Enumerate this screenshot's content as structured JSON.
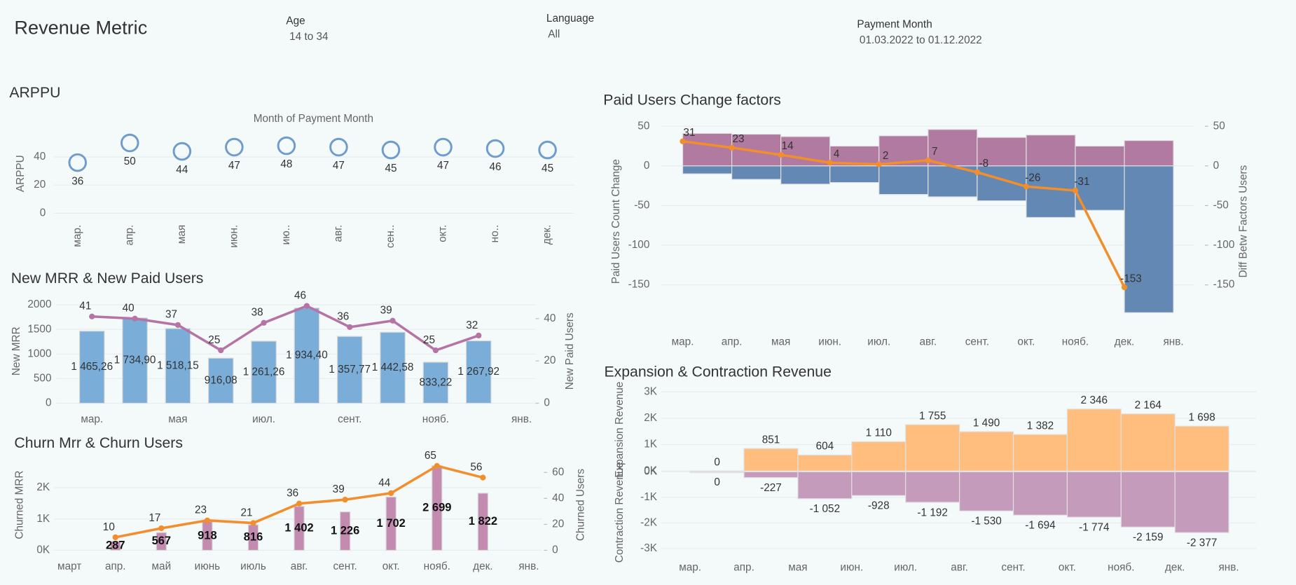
{
  "header": {
    "title": "Revenue Metric",
    "filters": [
      {
        "label": "Age",
        "value": "14 to 34"
      },
      {
        "label": "Language",
        "value": "All"
      },
      {
        "label": "Payment Month",
        "value": "01.03.2022 to 01.12.2022"
      }
    ]
  },
  "chart_data": [
    {
      "type": "dot",
      "title": "ARPPU",
      "x_label": "Month of Payment Month",
      "y_label": "ARPPU",
      "categories": [
        "мар.",
        "апр.",
        "мая",
        "июн.",
        "ию..",
        "авг.",
        "сен..",
        "окт.",
        "но..",
        "дек."
      ],
      "values": [
        36,
        50,
        44,
        47,
        48,
        47,
        45,
        47,
        46,
        45
      ],
      "color": "#6f9ccc",
      "ylim": [
        0,
        55
      ],
      "yticks": [
        0,
        20,
        40
      ],
      "grid": true
    },
    {
      "type": "bar-line",
      "title": "New MRR & New Paid Users",
      "categories": [
        "мар.",
        null,
        "мая",
        null,
        "июл.",
        null,
        "сент.",
        null,
        "нояб.",
        null,
        "янв."
      ],
      "series": [
        {
          "name": "New MRR",
          "color": "#7aadd8",
          "values": [
            1465.26,
            1734.9,
            1518.15,
            916.08,
            1261.26,
            1934.4,
            1357.77,
            1442.58,
            833.22,
            1267.92,
            null
          ],
          "value_labels": [
            "1 465,26",
            "1 734,90",
            "1 518,15",
            "916,08",
            "1 261,26",
            "1 934,40",
            "1 357,77",
            "1 442,58",
            "833,22",
            "1 267,92",
            null
          ]
        },
        {
          "name": "New Paid Users",
          "color": "#b574a5",
          "axis": "y2",
          "values": [
            41,
            40,
            37,
            25,
            38,
            46,
            36,
            39,
            25,
            32,
            null
          ]
        }
      ],
      "ylim": [
        0,
        2150
      ],
      "yticks": [
        0,
        500,
        1000,
        1500,
        2000
      ],
      "y2lim": [
        0,
        50
      ],
      "y2ticks": [
        0,
        20,
        40
      ],
      "grid": true
    },
    {
      "type": "bar-line",
      "title": "Churn Mrr & Churn Users",
      "categories": [
        "март",
        "апр.",
        "май",
        "июнь",
        "июль",
        "авг.",
        "сент.",
        "окт.",
        "нояб.",
        "дек.",
        "янв."
      ],
      "series": [
        {
          "name": "Churned  MRR",
          "color": "#c48bb0",
          "values": [
            null,
            287,
            567,
            918,
            816,
            1402,
            1226,
            1702,
            2699,
            1822,
            null
          ],
          "value_labels": [
            null,
            "287",
            "567",
            "918",
            "816",
            "1 402",
            "1 226",
            "1 702",
            "2 699",
            "1 822",
            null
          ]
        },
        {
          "name": "Churned Users",
          "color": "#f28e2b",
          "axis": "y2",
          "values": [
            null,
            10,
            17,
            23,
            21,
            36,
            39,
            44,
            65,
            56,
            null
          ]
        }
      ],
      "ylim": [
        0,
        2900
      ],
      "yticks": [
        {
          "value": 0,
          "label": "0K"
        },
        {
          "value": 1000,
          "label": "1K"
        },
        {
          "value": 2000,
          "label": "2K"
        }
      ],
      "y2lim": [
        0,
        70
      ],
      "y2ticks": [
        0,
        20,
        40,
        60
      ],
      "grid": true
    },
    {
      "type": "diverging-bar-line",
      "title": "Paid Users Change factors",
      "y_label": "Paid Users Count Change",
      "y2_label": "Diff Betw Factors Users",
      "categories": [
        "мар.",
        "апр.",
        "мая",
        "июн.",
        "июл.",
        "авг.",
        "сент.",
        "окт.",
        "нояб.",
        "дек.",
        "янв."
      ],
      "series": [
        {
          "color": "#b07aa1",
          "values": [
            41,
            40,
            37,
            25,
            38,
            46,
            36,
            39,
            25,
            32,
            null
          ]
        },
        {
          "color": "#6388b4",
          "values": [
            -10,
            -17,
            -23,
            -21,
            -36,
            -39,
            -44,
            -65,
            -56,
            -185,
            null
          ]
        },
        {
          "color": "#f28e2b",
          "axis": "y2",
          "values": [
            31,
            23,
            14,
            4,
            2,
            7,
            -8,
            -26,
            -31,
            -153,
            null
          ]
        }
      ],
      "ylim": [
        -195,
        55
      ],
      "yticks": [
        -150,
        -100,
        -50,
        0,
        50
      ],
      "y2lim": [
        -195,
        55
      ],
      "y2ticks": [
        -150,
        -100,
        -50,
        0,
        50
      ],
      "grid": true
    },
    {
      "type": "diverging-bar",
      "title": "Expansion & Contraction Revenue",
      "categories": [
        "мар.",
        "апр.",
        "мая",
        "июн.",
        "июл.",
        "авг.",
        "сент.",
        "окт.",
        "нояб.",
        "дек.",
        "янв."
      ],
      "series": [
        {
          "name": "Expansion Revenue",
          "color": "#ffbe7d",
          "values": [
            0,
            851,
            604,
            1110,
            1755,
            1490,
            1382,
            2346,
            2164,
            1698,
            null
          ],
          "value_labels": [
            "0",
            "851",
            "604",
            "1 110",
            "1 755",
            "1 490",
            "1 382",
            "2 346",
            "2 164",
            "1 698",
            null
          ]
        },
        {
          "name": "Contraction Revenue",
          "color": "#c59bbb",
          "axis": "y2",
          "values": [
            0,
            -227,
            -1052,
            -928,
            -1192,
            -1530,
            -1694,
            -1774,
            -2159,
            -2377,
            null
          ],
          "value_labels": [
            "0",
            "-227",
            "-1 052",
            "-928",
            "-1 192",
            "-1 530",
            "-1 694",
            "-1 774",
            "-2 159",
            "-2 377",
            null
          ]
        }
      ],
      "ylim": [
        0,
        3100
      ],
      "yticks": [
        {
          "value": 0,
          "label": "0K"
        },
        {
          "value": 1000,
          "label": "1K"
        },
        {
          "value": 2000,
          "label": "2K"
        },
        {
          "value": 3000,
          "label": "3K"
        }
      ],
      "y2lim": [
        -3100,
        0
      ],
      "y2ticks": [
        {
          "value": 0,
          "label": "0K"
        },
        {
          "value": -1000,
          "label": "-1K"
        },
        {
          "value": -2000,
          "label": "-2K"
        },
        {
          "value": -3000,
          "label": "-3K"
        }
      ],
      "grid": true
    }
  ]
}
